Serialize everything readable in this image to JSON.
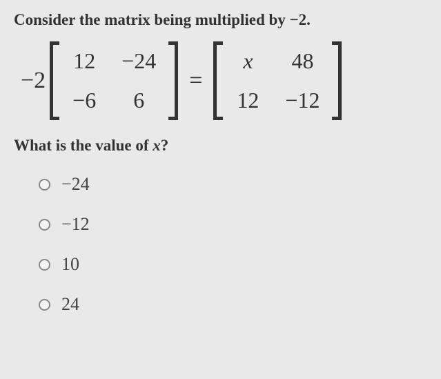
{
  "prompt_before": "Consider the matrix being multiplied by ",
  "prompt_scalar": "−2",
  "prompt_after": ".",
  "equation": {
    "scalar": "−2",
    "left_matrix": {
      "r1c1": "12",
      "r1c2": "−24",
      "r2c1": "−6",
      "r2c2": "6"
    },
    "equals": "=",
    "right_matrix": {
      "r1c1": "x",
      "r1c2": "48",
      "r2c1": "12",
      "r2c2": "−12"
    }
  },
  "question_before": "What is the value of ",
  "question_var": "x",
  "question_after": "?",
  "options": [
    {
      "label": "−24"
    },
    {
      "label": "−12"
    },
    {
      "label": "10"
    },
    {
      "label": "24"
    }
  ],
  "colors": {
    "background": "#e9e9ea",
    "text": "#333333",
    "radio_border": "#8a8a8a"
  }
}
